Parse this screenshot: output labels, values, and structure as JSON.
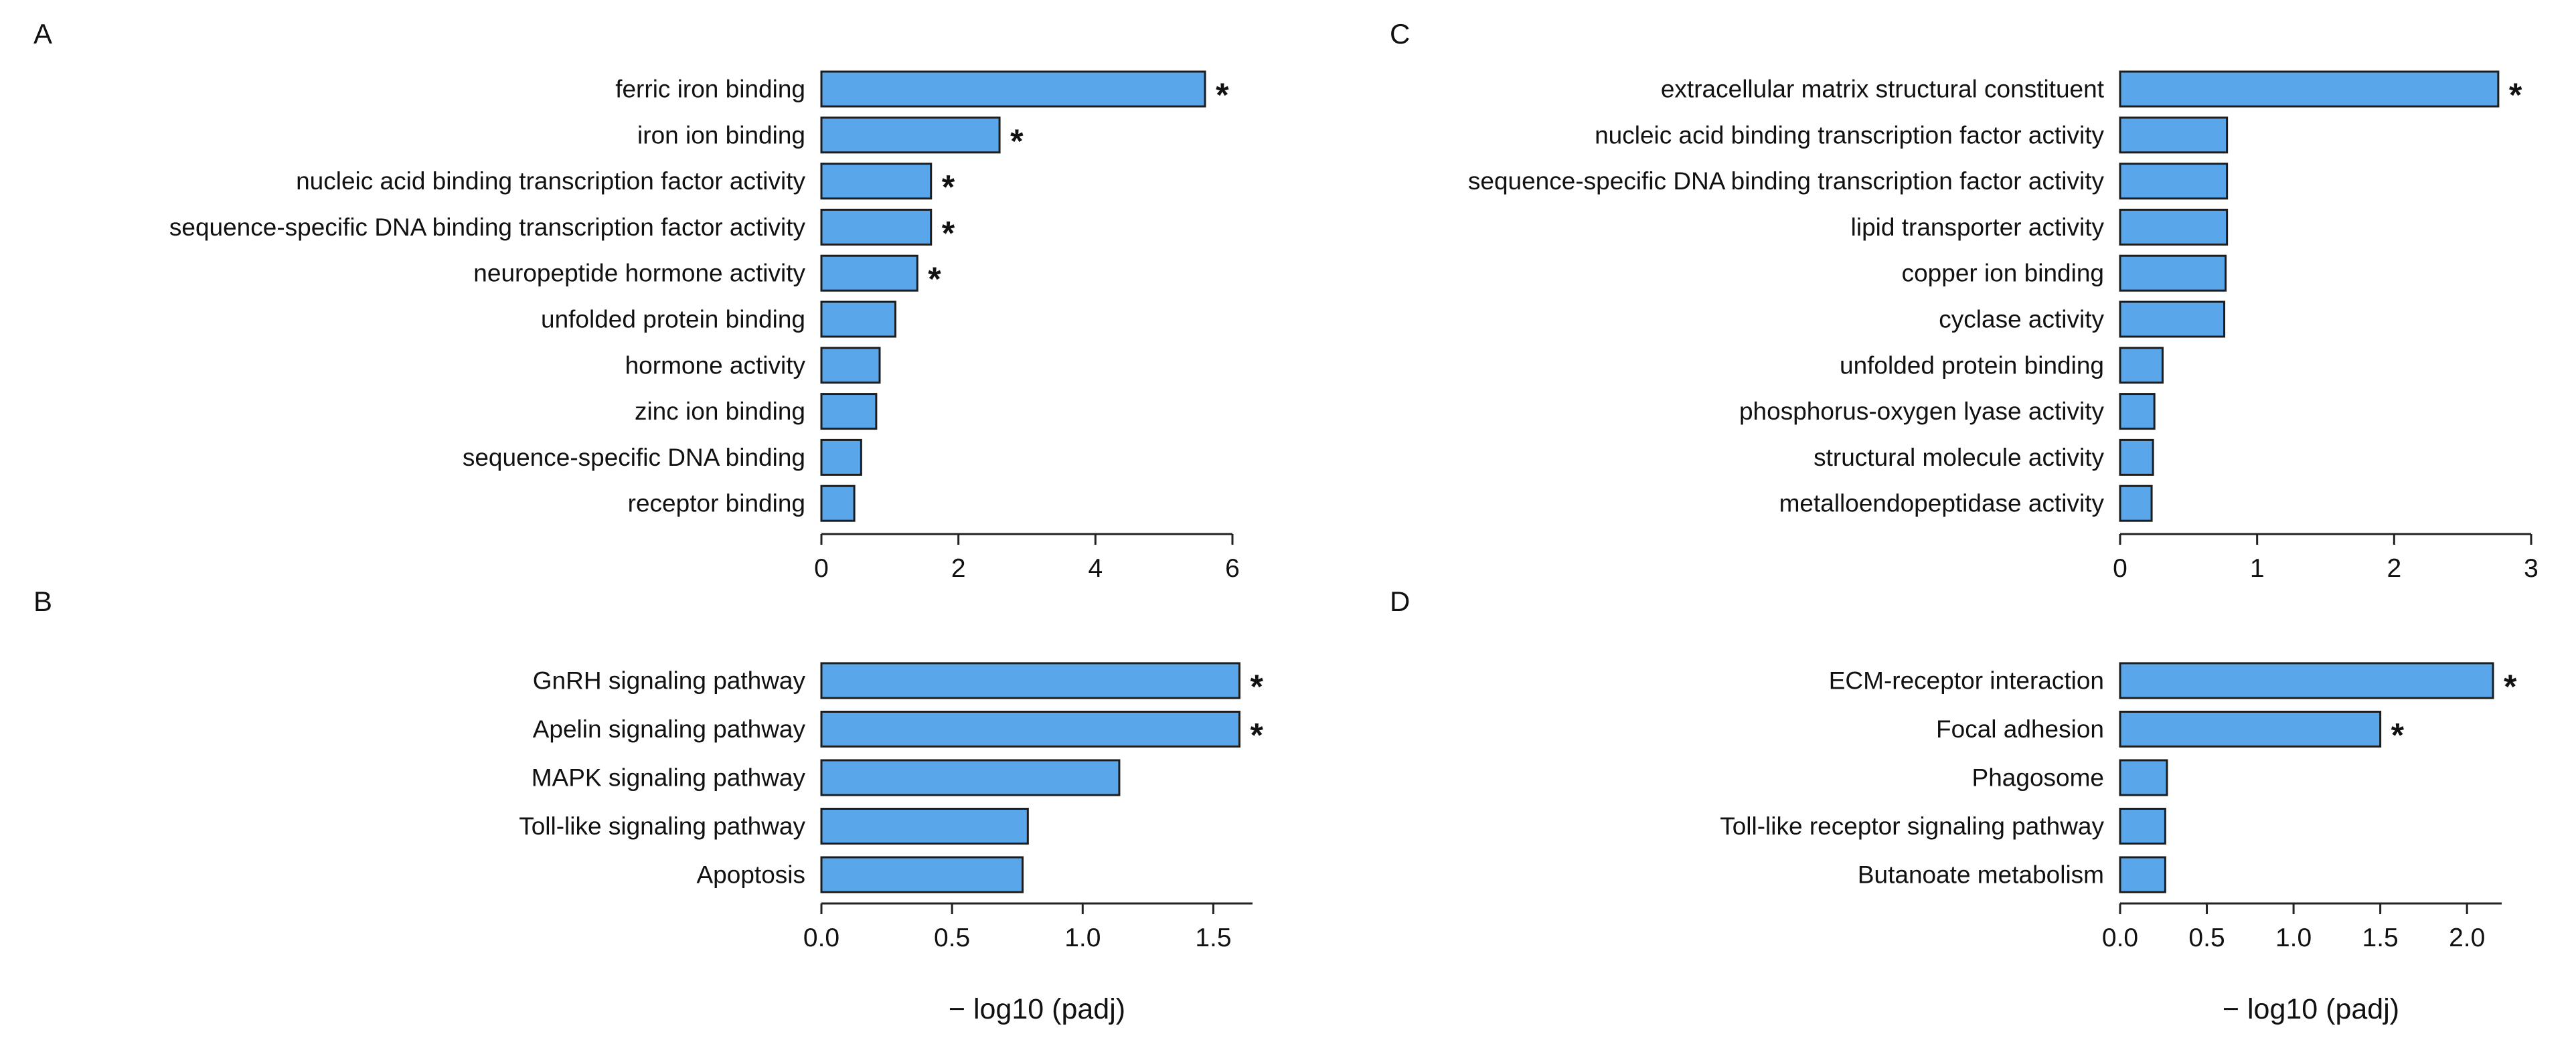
{
  "colors": {
    "bar_fill": "#5aa6ea",
    "bar_stroke": "#1d1d1d",
    "axis": "#222222"
  },
  "chart_data": [
    {
      "type": "bar",
      "orientation": "horizontal",
      "panel": "A",
      "categories": [
        "ferric iron binding",
        "iron ion binding",
        "nucleic acid binding transcription factor activity",
        "sequence-specific DNA binding transcription factor activity",
        "neuropeptide hormone activity",
        "unfolded protein binding",
        "hormone activity",
        "zinc ion binding",
        "sequence-specific DNA binding",
        "receptor binding"
      ],
      "values": [
        5.6,
        2.6,
        1.6,
        1.6,
        1.4,
        1.08,
        0.85,
        0.8,
        0.58,
        0.48
      ],
      "significant": [
        true,
        true,
        true,
        true,
        true,
        false,
        false,
        false,
        false,
        false
      ],
      "marker": "*",
      "xlim": [
        0,
        6
      ],
      "xticks": [
        "0",
        "2",
        "4",
        "6"
      ],
      "xlabel": ""
    },
    {
      "type": "bar",
      "orientation": "horizontal",
      "panel": "B",
      "categories": [
        "GnRH signaling pathway",
        "Apelin signaling pathway",
        "MAPK signaling pathway",
        "Toll-like signaling pathway",
        "Apoptosis"
      ],
      "values": [
        1.6,
        1.6,
        1.14,
        0.79,
        0.77
      ],
      "significant": [
        true,
        true,
        false,
        false,
        false
      ],
      "marker": "*",
      "xlim": [
        0,
        1.65
      ],
      "xticks": [
        "0.0",
        "0.5",
        "1.0",
        "1.5"
      ],
      "xlabel": "− log10 (padj)"
    },
    {
      "type": "bar",
      "orientation": "horizontal",
      "panel": "C",
      "categories": [
        "extracellular matrix structural constituent",
        "nucleic acid binding transcription factor activity",
        "sequence-specific DNA binding transcription factor activity",
        "lipid transporter activity",
        "copper ion binding",
        "cyclase activity",
        "unfolded protein binding",
        "phosphorus-oxygen lyase activity",
        "structural molecule activity",
        "metalloendopeptidase activity"
      ],
      "values": [
        2.76,
        0.78,
        0.78,
        0.78,
        0.77,
        0.76,
        0.31,
        0.25,
        0.24,
        0.23
      ],
      "significant": [
        true,
        false,
        false,
        false,
        false,
        false,
        false,
        false,
        false,
        false
      ],
      "marker": "*",
      "xlim": [
        0,
        3
      ],
      "xticks": [
        "0",
        "1",
        "2",
        "3"
      ],
      "xlabel": ""
    },
    {
      "type": "bar",
      "orientation": "horizontal",
      "panel": "D",
      "categories": [
        "ECM-receptor interaction",
        "Focal adhesion",
        "Phagosome",
        "Toll-like receptor signaling pathway",
        "Butanoate metabolism"
      ],
      "values": [
        2.15,
        1.5,
        0.27,
        0.26,
        0.26
      ],
      "significant": [
        true,
        true,
        false,
        false,
        false
      ],
      "marker": "*",
      "xlim": [
        0,
        2.2
      ],
      "xticks": [
        "0.0",
        "0.5",
        "1.0",
        "1.5",
        "2.0"
      ],
      "xlabel": "− log10 (padj)"
    }
  ]
}
